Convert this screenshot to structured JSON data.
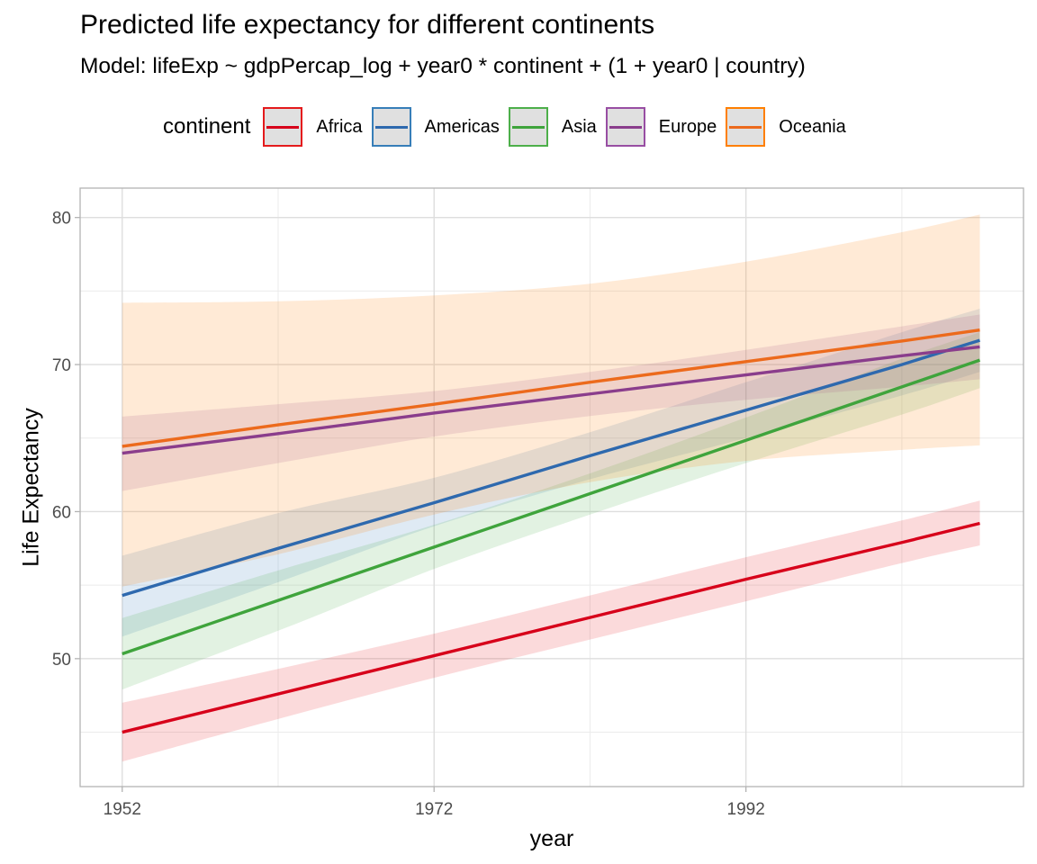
{
  "chart_data": {
    "type": "line",
    "title": "Predicted life expectancy for different continents",
    "subtitle": "Model: lifeExp ~ gdpPercap_log + year0 * continent + (1 + year0 | country)",
    "xlabel": "year",
    "ylabel": "Life Expectancy",
    "xlim": [
      1949.3,
      2009.8
    ],
    "ylim": [
      41.3,
      82.0
    ],
    "x_ticks": [
      1952,
      1972,
      1992
    ],
    "x_tick_labels": [
      "1952",
      "1972",
      "1992"
    ],
    "x_minor_ticks": [
      1962,
      1982,
      2002
    ],
    "y_ticks": [
      50,
      60,
      70,
      80
    ],
    "y_tick_labels": [
      "50",
      "60",
      "70",
      "80"
    ],
    "y_minor_ticks": [
      45,
      55,
      65,
      75
    ],
    "grid": true,
    "legend": {
      "title": "continent",
      "position": "top"
    },
    "x": [
      1952,
      1962,
      1972,
      1982,
      1992,
      2002,
      2007
    ],
    "series": [
      {
        "name": "Africa",
        "color": "#E41A1C",
        "values": [
          45.0,
          47.6,
          50.2,
          52.8,
          55.4,
          57.9,
          59.2
        ],
        "lower": [
          43.0,
          45.9,
          48.7,
          51.3,
          53.9,
          56.5,
          57.7
        ],
        "upper": [
          47.0,
          49.3,
          51.7,
          54.3,
          56.9,
          59.4,
          60.75
        ]
      },
      {
        "name": "Americas",
        "color": "#377EB8",
        "values": [
          54.3,
          57.5,
          60.6,
          63.8,
          66.9,
          70.0,
          71.65
        ],
        "lower": [
          51.5,
          55.2,
          59.0,
          62.2,
          65.0,
          67.9,
          69.5
        ],
        "upper": [
          57.0,
          59.9,
          62.3,
          65.4,
          68.8,
          72.2,
          73.8
        ]
      },
      {
        "name": "Asia",
        "color": "#4DAF4A",
        "values": [
          50.33,
          53.96,
          57.59,
          61.22,
          64.85,
          68.48,
          70.3
        ],
        "lower": [
          47.9,
          51.9,
          56.1,
          59.8,
          63.3,
          66.6,
          68.4
        ],
        "upper": [
          52.76,
          56.0,
          59.1,
          62.6,
          66.4,
          70.4,
          72.2
        ]
      },
      {
        "name": "Europe",
        "color": "#984EA3",
        "values": [
          63.97,
          65.3,
          66.7,
          68.0,
          69.3,
          70.6,
          71.2
        ],
        "lower": [
          61.4,
          63.3,
          65.1,
          66.5,
          67.6,
          68.5,
          69.0
        ],
        "upper": [
          66.46,
          67.3,
          68.2,
          69.5,
          71.0,
          72.6,
          73.4
        ]
      },
      {
        "name": "Oceania",
        "color": "#FF7F00",
        "values": [
          64.44,
          65.9,
          67.3,
          68.8,
          70.2,
          71.6,
          72.35
        ],
        "lower": [
          54.9,
          57.1,
          59.8,
          62.0,
          63.45,
          64.2,
          64.5
        ],
        "upper": [
          74.2,
          74.3,
          74.7,
          75.5,
          77.0,
          79.0,
          80.2
        ]
      }
    ]
  }
}
